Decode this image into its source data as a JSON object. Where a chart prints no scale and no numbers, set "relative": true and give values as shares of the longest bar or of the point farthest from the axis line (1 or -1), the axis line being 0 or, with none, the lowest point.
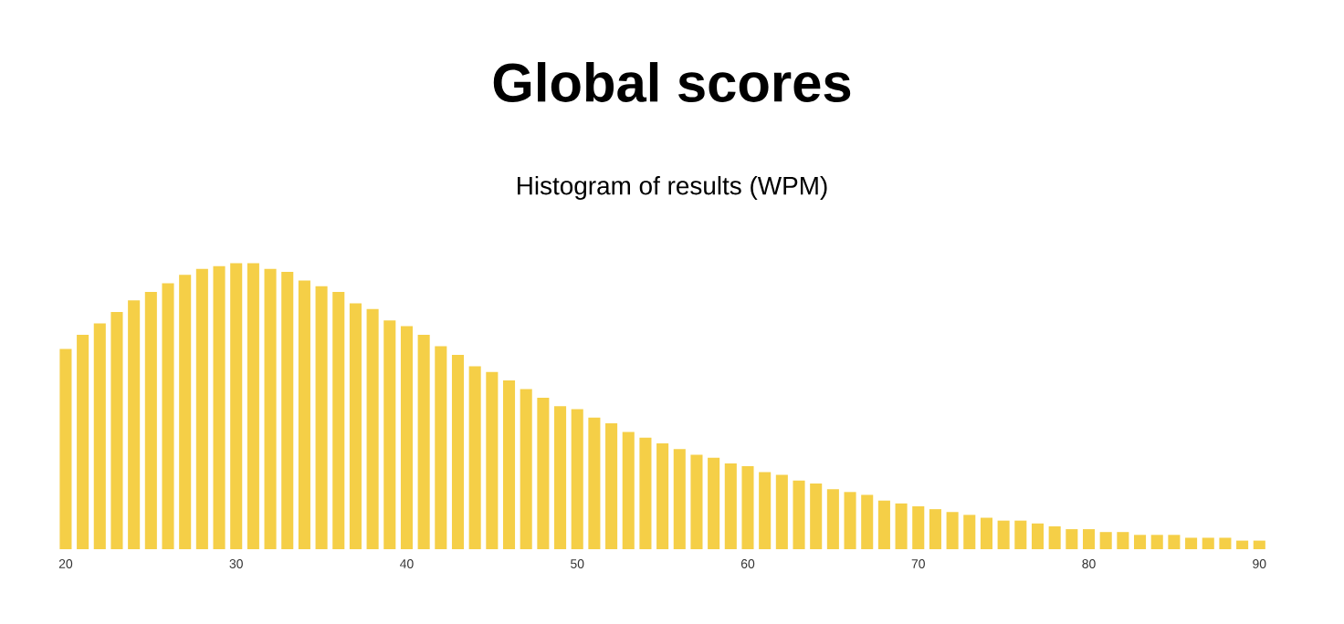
{
  "chart_data": {
    "type": "bar",
    "title": "Global scores",
    "subtitle": "Histogram of results (WPM)",
    "x": [
      20,
      21,
      22,
      23,
      24,
      25,
      26,
      27,
      28,
      29,
      30,
      31,
      32,
      33,
      34,
      35,
      36,
      37,
      38,
      39,
      40,
      41,
      42,
      43,
      44,
      45,
      46,
      47,
      48,
      49,
      50,
      51,
      52,
      53,
      54,
      55,
      56,
      57,
      58,
      59,
      60,
      61,
      62,
      63,
      64,
      65,
      66,
      67,
      68,
      69,
      70,
      71,
      72,
      73,
      74,
      75,
      76,
      77,
      78,
      79,
      80,
      81,
      82,
      83,
      84,
      85,
      86,
      87,
      88,
      89,
      90
    ],
    "values": [
      0.7,
      0.75,
      0.79,
      0.83,
      0.87,
      0.9,
      0.93,
      0.96,
      0.98,
      0.99,
      1,
      1.0,
      0.98,
      0.97,
      0.94,
      0.92,
      0.9,
      0.86,
      0.84,
      0.8,
      0.78,
      0.75,
      0.71,
      0.68,
      0.64,
      0.62,
      0.59,
      0.56,
      0.53,
      0.5,
      0.49,
      0.46,
      0.44,
      0.41,
      0.39,
      0.37,
      0.35,
      0.33,
      0.32,
      0.3,
      0.29,
      0.27,
      0.26,
      0.24,
      0.23,
      0.21,
      0.2,
      0.19,
      0.17,
      0.16,
      0.15,
      0.14,
      0.13,
      0.12,
      0.11,
      0.1,
      0.1,
      0.09,
      0.08,
      0.07,
      0.07,
      0.06,
      0.06,
      0.05,
      0.05,
      0.05,
      0.04,
      0.04,
      0.04,
      0.03,
      0.03
    ],
    "color": "#f5cf47",
    "relative": true,
    "xlim": [
      19.5,
      90.5
    ],
    "xticks": [
      {
        "value": 20,
        "label": "20"
      },
      {
        "value": 30,
        "label": "30"
      },
      {
        "value": 40,
        "label": "40"
      },
      {
        "value": 50,
        "label": "50"
      },
      {
        "value": 60,
        "label": "60"
      },
      {
        "value": 70,
        "label": "70"
      },
      {
        "value": 80,
        "label": "80"
      },
      {
        "value": 90,
        "label": "90"
      }
    ]
  }
}
